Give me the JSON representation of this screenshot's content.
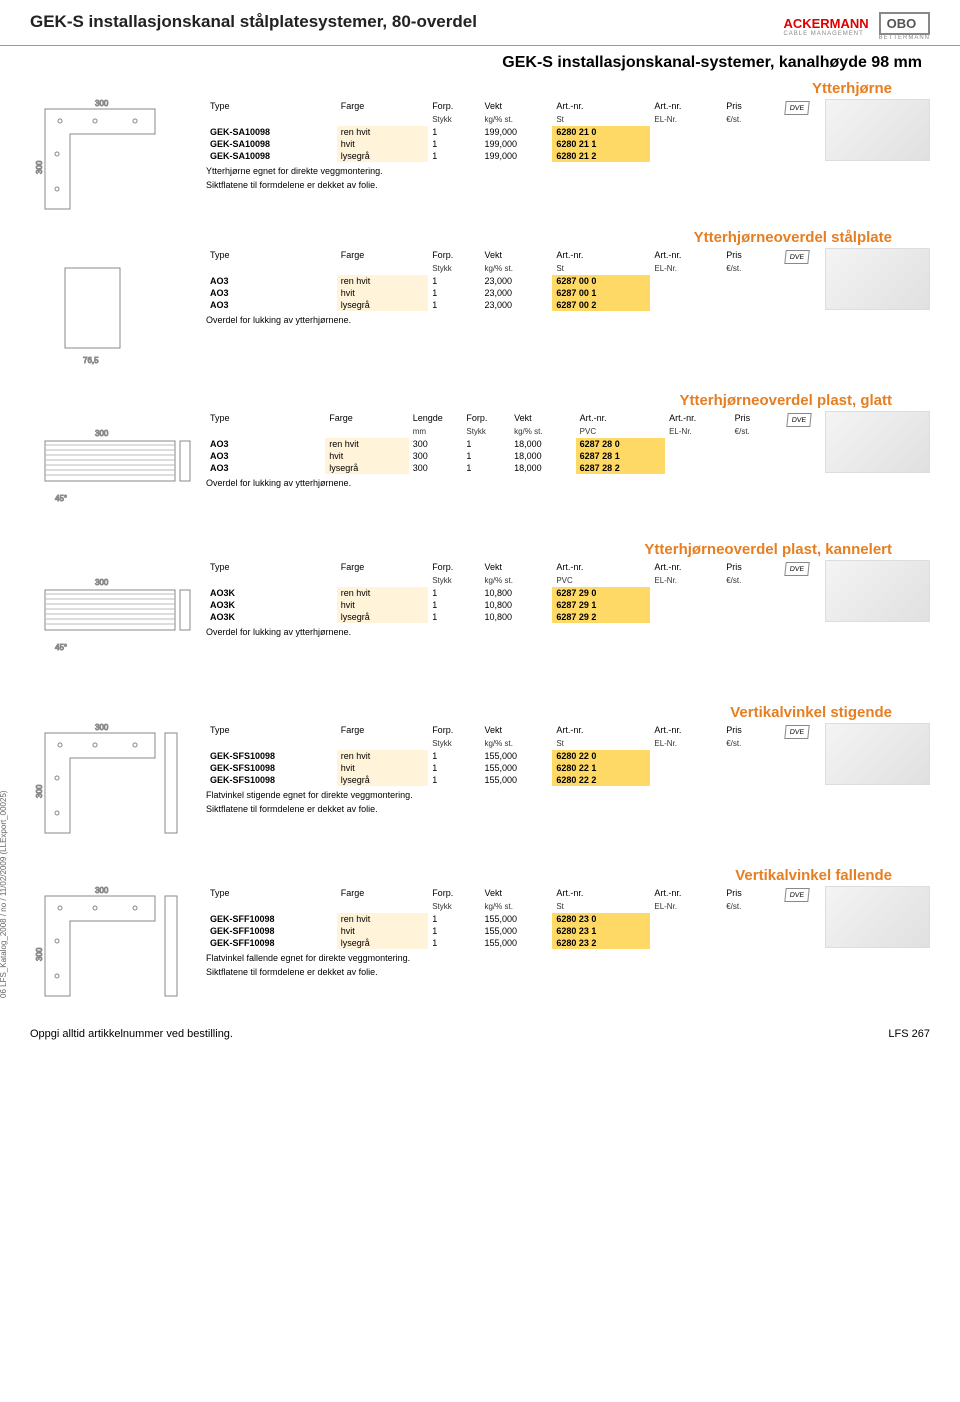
{
  "header": {
    "title": "GEK-S installasjonskanal stålplatesystemer, 80-overdel",
    "logo1": "ACKERMANN",
    "logo1_sub": "CABLE MANAGEMENT",
    "logo2": "OBO",
    "logo2_sub": "BETTERMANN"
  },
  "system_title": "GEK-S installasjonskanal-systemer, kanalhøyde 98 mm",
  "cols": {
    "type": "Type",
    "farge": "Farge",
    "lengde": "Lengde",
    "forp": "Forp.",
    "vekt": "Vekt",
    "art1": "Art.-nr.",
    "art2": "Art.-nr.",
    "pris": "Pris",
    "mm": "mm",
    "stykk": "Stykk",
    "kg": "kg/% st.",
    "st": "St",
    "pvc": "PVC",
    "elnr": "EL-Nr.",
    "eur": "€/st."
  },
  "vde": "DVE",
  "sections": [
    {
      "heading": "Ytterhjørne",
      "has_lengde": false,
      "mat": "St",
      "rows": [
        {
          "type": "GEK-SA10098",
          "farge": "ren hvit",
          "forp": "1",
          "vekt": "199,000",
          "art": "6280 21 0"
        },
        {
          "type": "GEK-SA10098",
          "farge": "hvit",
          "forp": "1",
          "vekt": "199,000",
          "art": "6280 21 1"
        },
        {
          "type": "GEK-SA10098",
          "farge": "lysegrå",
          "forp": "1",
          "vekt": "199,000",
          "art": "6280 21 2"
        }
      ],
      "note1": "Ytterhjørne egnet for direkte veggmontering.",
      "note2": "Siktflatene til formdelene er dekket av folie."
    },
    {
      "heading": "Ytterhjørneoverdel stålplate",
      "has_lengde": false,
      "mat": "St",
      "rows": [
        {
          "type": "AO3",
          "farge": "ren hvit",
          "forp": "1",
          "vekt": "23,000",
          "art": "6287 00 0"
        },
        {
          "type": "AO3",
          "farge": "hvit",
          "forp": "1",
          "vekt": "23,000",
          "art": "6287 00 1"
        },
        {
          "type": "AO3",
          "farge": "lysegrå",
          "forp": "1",
          "vekt": "23,000",
          "art": "6287 00 2"
        }
      ],
      "note1": "Overdel for lukking av ytterhjørnene.",
      "note2": ""
    },
    {
      "heading": "Ytterhjørneoverdel plast, glatt",
      "has_lengde": true,
      "mat": "PVC",
      "rows": [
        {
          "type": "AO3",
          "farge": "ren hvit",
          "len": "300",
          "forp": "1",
          "vekt": "18,000",
          "art": "6287 28 0"
        },
        {
          "type": "AO3",
          "farge": "hvit",
          "len": "300",
          "forp": "1",
          "vekt": "18,000",
          "art": "6287 28 1"
        },
        {
          "type": "AO3",
          "farge": "lysegrå",
          "len": "300",
          "forp": "1",
          "vekt": "18,000",
          "art": "6287 28 2"
        }
      ],
      "note1": "Overdel for lukking av ytterhjørnene.",
      "note2": ""
    },
    {
      "heading": "Ytterhjørneoverdel plast, kannelert",
      "has_lengde": false,
      "mat": "PVC",
      "rows": [
        {
          "type": "AO3K",
          "farge": "ren hvit",
          "forp": "1",
          "vekt": "10,800",
          "art": "6287 29 0"
        },
        {
          "type": "AO3K",
          "farge": "hvit",
          "forp": "1",
          "vekt": "10,800",
          "art": "6287 29 1"
        },
        {
          "type": "AO3K",
          "farge": "lysegrå",
          "forp": "1",
          "vekt": "10,800",
          "art": "6287 29 2"
        }
      ],
      "note1": "Overdel for lukking av ytterhjørnene.",
      "note2": ""
    },
    {
      "heading": "Vertikalvinkel stigende",
      "has_lengde": false,
      "mat": "St",
      "rows": [
        {
          "type": "GEK-SFS10098",
          "farge": "ren hvit",
          "forp": "1",
          "vekt": "155,000",
          "art": "6280 22 0"
        },
        {
          "type": "GEK-SFS10098",
          "farge": "hvit",
          "forp": "1",
          "vekt": "155,000",
          "art": "6280 22 1"
        },
        {
          "type": "GEK-SFS10098",
          "farge": "lysegrå",
          "forp": "1",
          "vekt": "155,000",
          "art": "6280 22 2"
        }
      ],
      "note1": "Flatvinkel stigende egnet for direkte veggmontering.",
      "note2": "Siktflatene til formdelene er dekket av folie."
    },
    {
      "heading": "Vertikalvinkel fallende",
      "has_lengde": false,
      "mat": "St",
      "rows": [
        {
          "type": "GEK-SFF10098",
          "farge": "ren hvit",
          "forp": "1",
          "vekt": "155,000",
          "art": "6280 23 0"
        },
        {
          "type": "GEK-SFF10098",
          "farge": "hvit",
          "forp": "1",
          "vekt": "155,000",
          "art": "6280 23 1"
        },
        {
          "type": "GEK-SFF10098",
          "farge": "lysegrå",
          "forp": "1",
          "vekt": "155,000",
          "art": "6280 23 2"
        }
      ],
      "note1": "Flatvinkel fallende egnet for direkte veggmontering.",
      "note2": "Siktflatene til formdelene er dekket av folie."
    }
  ],
  "sidebar": "06 LFS_Katalog_2008 / no / 11/02/2009 (LLExport_00025)",
  "footer": {
    "left": "Oppgi alltid artikkelnummer ved bestilling.",
    "right": "LFS 267"
  }
}
